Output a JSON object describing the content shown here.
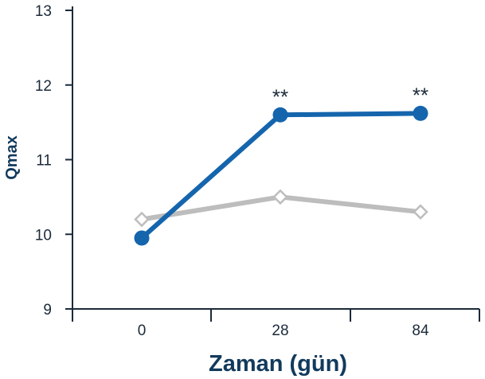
{
  "chart_data": {
    "type": "line",
    "title": "",
    "xlabel": "Zaman (gün)",
    "ylabel": "Qmax",
    "x_categories": [
      "0",
      "28",
      "84"
    ],
    "ylim": [
      9,
      13
    ],
    "yticks": [
      "9",
      "10",
      "11",
      "12",
      "13"
    ],
    "grid": false,
    "series": [
      {
        "values": [
          10.2,
          10.5,
          10.3
        ],
        "color": "#bdbdbd",
        "marker": "open-diamond"
      },
      {
        "values": [
          9.95,
          11.6,
          11.62
        ],
        "color": "#1565ad",
        "marker": "filled-circle"
      }
    ],
    "annotations": [
      {
        "x": "28",
        "y": 11.6,
        "text": "**"
      },
      {
        "x": "84",
        "y": 11.62,
        "text": "**"
      }
    ]
  }
}
